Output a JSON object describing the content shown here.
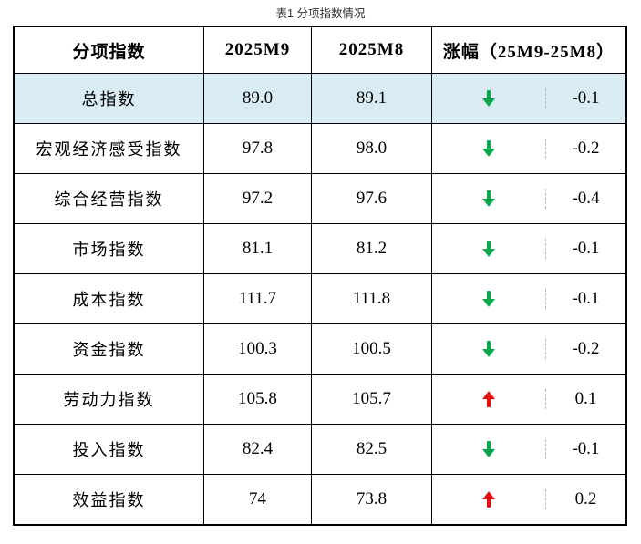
{
  "caption": "表1 分项指数情况",
  "table": {
    "headers": [
      "分项指数",
      "2025M9",
      "2025M8",
      "涨幅（25M9-25M8）"
    ],
    "rows": [
      {
        "label": "总指数",
        "m9": "89.0",
        "m8": "89.1",
        "direction": "down",
        "change": "-0.1",
        "highlight": true
      },
      {
        "label": "宏观经济感受指数",
        "m9": "97.8",
        "m8": "98.0",
        "direction": "down",
        "change": "-0.2",
        "highlight": false
      },
      {
        "label": "综合经营指数",
        "m9": "97.2",
        "m8": "97.6",
        "direction": "down",
        "change": "-0.4",
        "highlight": false
      },
      {
        "label": "市场指数",
        "m9": "81.1",
        "m8": "81.2",
        "direction": "down",
        "change": "-0.1",
        "highlight": false
      },
      {
        "label": "成本指数",
        "m9": "111.7",
        "m8": "111.8",
        "direction": "down",
        "change": "-0.1",
        "highlight": false
      },
      {
        "label": "资金指数",
        "m9": "100.3",
        "m8": "100.5",
        "direction": "down",
        "change": "-0.2",
        "highlight": false
      },
      {
        "label": "劳动力指数",
        "m9": "105.8",
        "m8": "105.7",
        "direction": "up",
        "change": "0.1",
        "highlight": false
      },
      {
        "label": "投入指数",
        "m9": "82.4",
        "m8": "82.5",
        "direction": "down",
        "change": "-0.1",
        "highlight": false
      },
      {
        "label": "效益指数",
        "m9": "74",
        "m8": "73.8",
        "direction": "up",
        "change": "0.2",
        "highlight": false
      }
    ],
    "colors": {
      "up_arrow": "#e60f0f",
      "down_arrow": "#0aa84e",
      "highlight_bg": "#daecf3",
      "border": "#000000",
      "dashed_divider": "#b9b9b9"
    }
  },
  "chart_data": {
    "type": "table",
    "title": "表1 分项指数情况",
    "columns": [
      "分项指数",
      "2025M9",
      "2025M8",
      "涨幅（25M9-25M8）"
    ],
    "rows": [
      {
        "label": "总指数",
        "values": [
          89.0,
          89.1
        ],
        "change": -0.1,
        "direction": "down"
      },
      {
        "label": "宏观经济感受指数",
        "values": [
          97.8,
          98.0
        ],
        "change": -0.2,
        "direction": "down"
      },
      {
        "label": "综合经营指数",
        "values": [
          97.2,
          97.6
        ],
        "change": -0.4,
        "direction": "down"
      },
      {
        "label": "市场指数",
        "values": [
          81.1,
          81.2
        ],
        "change": -0.1,
        "direction": "down"
      },
      {
        "label": "成本指数",
        "values": [
          111.7,
          111.8
        ],
        "change": -0.1,
        "direction": "down"
      },
      {
        "label": "资金指数",
        "values": [
          100.3,
          100.5
        ],
        "change": -0.2,
        "direction": "down"
      },
      {
        "label": "劳动力指数",
        "values": [
          105.8,
          105.7
        ],
        "change": 0.1,
        "direction": "up"
      },
      {
        "label": "投入指数",
        "values": [
          82.4,
          82.5
        ],
        "change": -0.1,
        "direction": "down"
      },
      {
        "label": "效益指数",
        "values": [
          74,
          73.8
        ],
        "change": 0.2,
        "direction": "up"
      }
    ],
    "layout": {
      "highlight_row": "总指数",
      "change_column_split": "arrow | value (dashed divider)"
    }
  }
}
